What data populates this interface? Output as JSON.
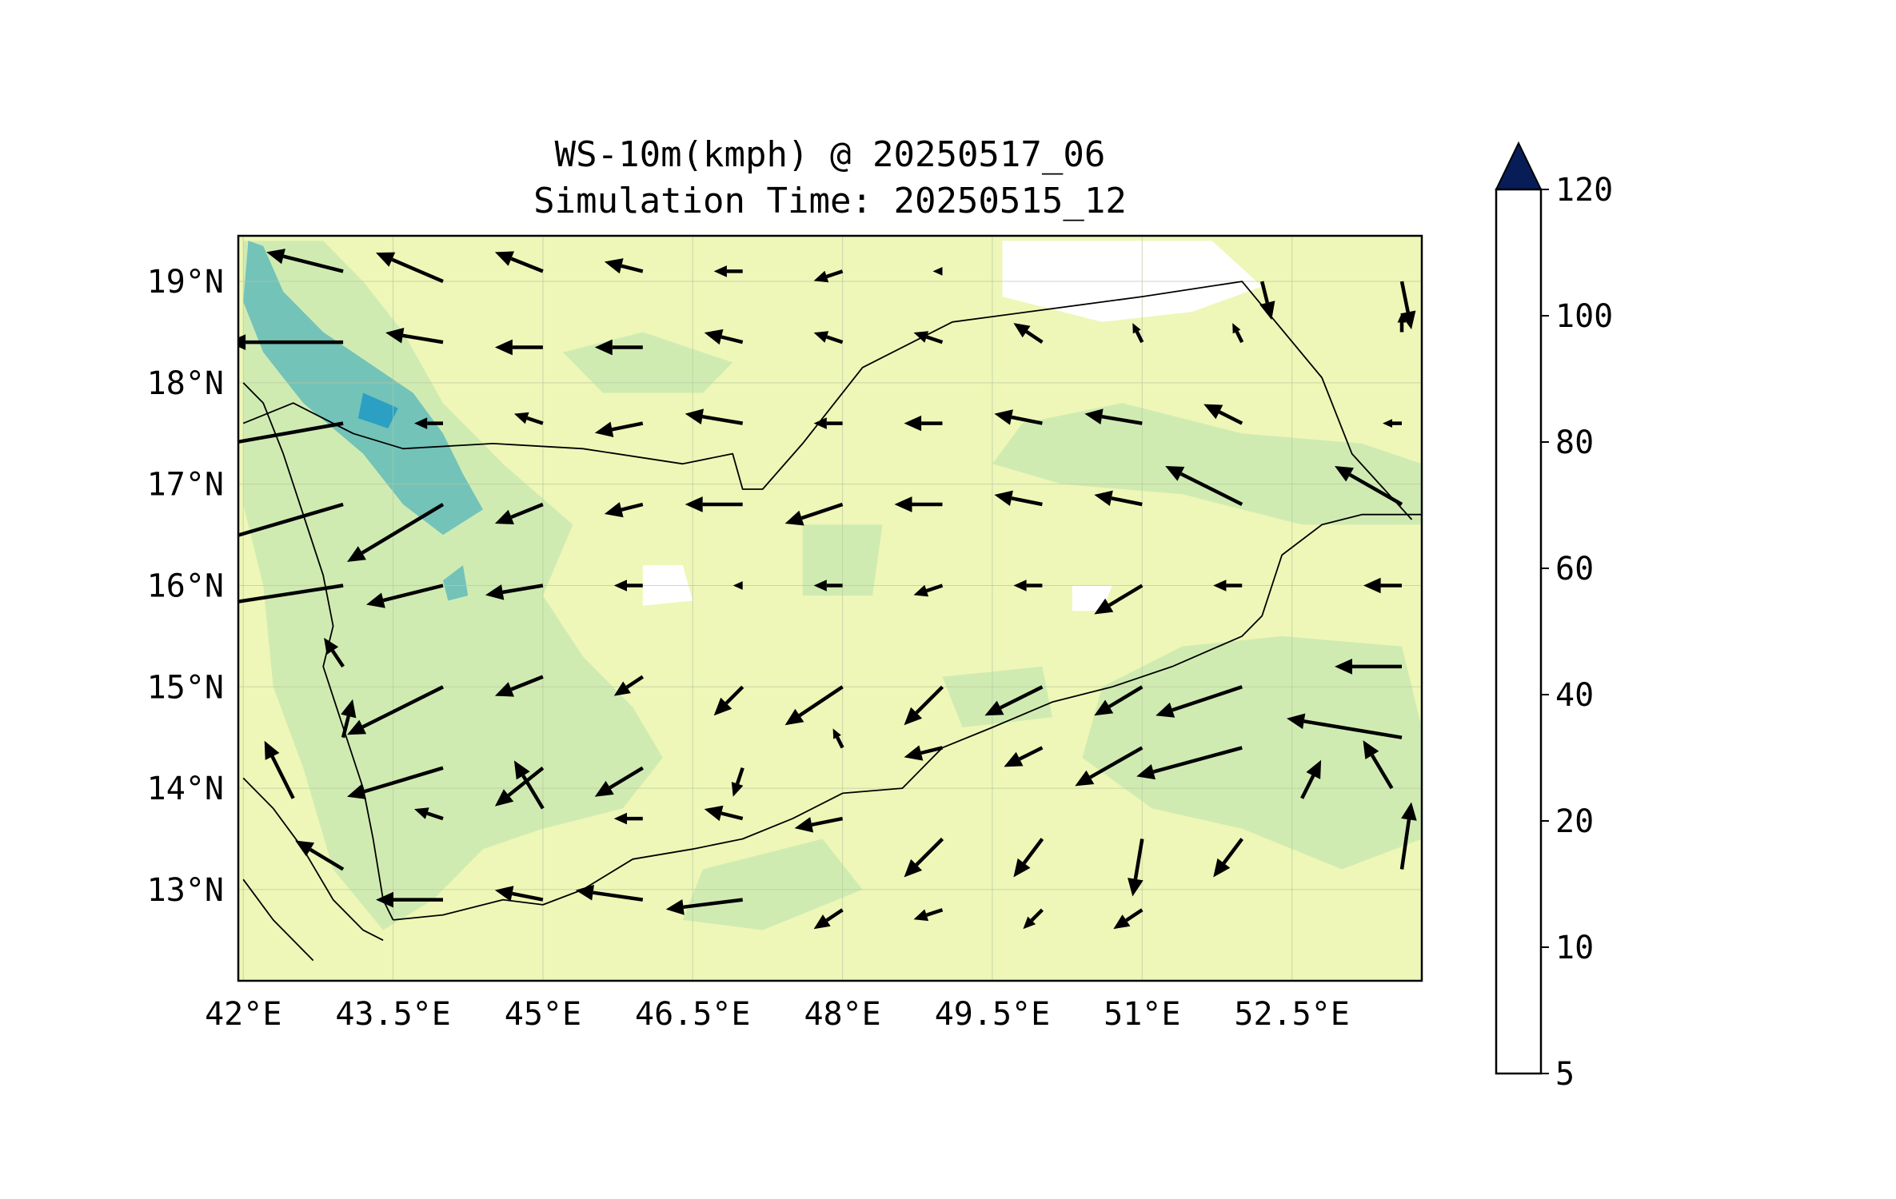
{
  "title": {
    "line1": "WS-10m(kmph) @ 20250517_06",
    "line2": "Simulation Time: 20250515_12"
  },
  "map": {
    "lon_range": [
      41.95,
      53.8
    ],
    "lat_range": [
      12.1,
      19.45
    ],
    "x_ticks": [
      {
        "value": 42.0,
        "label": "42°E"
      },
      {
        "value": 43.5,
        "label": "43.5°E"
      },
      {
        "value": 45.0,
        "label": "45°E"
      },
      {
        "value": 46.5,
        "label": "46.5°E"
      },
      {
        "value": 48.0,
        "label": "48°E"
      },
      {
        "value": 49.5,
        "label": "49.5°E"
      },
      {
        "value": 51.0,
        "label": "51°E"
      },
      {
        "value": 52.5,
        "label": "52.5°E"
      }
    ],
    "y_ticks": [
      {
        "value": 19.0,
        "label": "19°N"
      },
      {
        "value": 18.0,
        "label": "18°N"
      },
      {
        "value": 17.0,
        "label": "17°N"
      },
      {
        "value": 16.0,
        "label": "16°N"
      },
      {
        "value": 15.0,
        "label": "15°N"
      },
      {
        "value": 14.0,
        "label": "14°N"
      },
      {
        "value": 13.0,
        "label": "13°N"
      }
    ],
    "grid": true,
    "background_fill": "#eef7b7"
  },
  "contour_patches": [
    {
      "level": 20,
      "color": "#d0ebb2",
      "points": [
        [
          42.0,
          19.4
        ],
        [
          42.8,
          19.4
        ],
        [
          43.2,
          19.0
        ],
        [
          43.6,
          18.5
        ],
        [
          44.0,
          17.8
        ],
        [
          44.6,
          17.2
        ],
        [
          45.3,
          16.6
        ],
        [
          45.0,
          15.9
        ],
        [
          45.4,
          15.3
        ],
        [
          45.9,
          14.8
        ],
        [
          46.2,
          14.3
        ],
        [
          45.8,
          13.8
        ],
        [
          45.0,
          13.6
        ],
        [
          44.4,
          13.4
        ],
        [
          43.9,
          12.9
        ],
        [
          43.4,
          12.6
        ],
        [
          42.9,
          13.2
        ],
        [
          42.6,
          14.2
        ],
        [
          42.3,
          15.0
        ],
        [
          42.2,
          16.0
        ],
        [
          42.0,
          16.8
        ]
      ]
    },
    {
      "level": 20,
      "color": "#d0ebb2",
      "points": [
        [
          50.6,
          15.0
        ],
        [
          51.4,
          15.4
        ],
        [
          52.4,
          15.5
        ],
        [
          53.6,
          15.4
        ],
        [
          53.8,
          14.6
        ],
        [
          53.8,
          13.5
        ],
        [
          53.0,
          13.2
        ],
        [
          52.0,
          13.6
        ],
        [
          51.1,
          13.8
        ],
        [
          50.4,
          14.3
        ]
      ]
    },
    {
      "level": 20,
      "color": "#d0ebb2",
      "points": [
        [
          49.8,
          17.6
        ],
        [
          50.8,
          17.8
        ],
        [
          52.0,
          17.5
        ],
        [
          53.2,
          17.4
        ],
        [
          53.8,
          17.2
        ],
        [
          53.8,
          16.6
        ],
        [
          52.6,
          16.6
        ],
        [
          51.4,
          16.9
        ],
        [
          50.2,
          17.0
        ],
        [
          49.5,
          17.2
        ]
      ]
    },
    {
      "level": 20,
      "color": "#d0ebb2",
      "points": [
        [
          45.2,
          18.3
        ],
        [
          46.0,
          18.5
        ],
        [
          46.9,
          18.2
        ],
        [
          46.6,
          17.9
        ],
        [
          45.6,
          17.9
        ]
      ]
    },
    {
      "level": 20,
      "color": "#d0ebb2",
      "points": [
        [
          46.6,
          13.2
        ],
        [
          47.8,
          13.5
        ],
        [
          48.2,
          13.0
        ],
        [
          47.2,
          12.6
        ],
        [
          46.4,
          12.7
        ]
      ]
    },
    {
      "level": 20,
      "color": "#d0ebb2",
      "points": [
        [
          47.6,
          16.6
        ],
        [
          48.4,
          16.6
        ],
        [
          48.3,
          15.9
        ],
        [
          47.6,
          15.9
        ]
      ]
    },
    {
      "level": 20,
      "color": "#d0ebb2",
      "points": [
        [
          49.0,
          15.1
        ],
        [
          50.0,
          15.2
        ],
        [
          50.1,
          14.7
        ],
        [
          49.2,
          14.6
        ]
      ]
    },
    {
      "level": 40,
      "color": "#73c3b9",
      "points": [
        [
          42.05,
          19.4
        ],
        [
          42.2,
          19.35
        ],
        [
          42.4,
          18.9
        ],
        [
          42.8,
          18.5
        ],
        [
          43.1,
          18.3
        ],
        [
          43.7,
          17.9
        ],
        [
          44.0,
          17.5
        ],
        [
          44.2,
          17.1
        ],
        [
          44.4,
          16.75
        ],
        [
          44.0,
          16.5
        ],
        [
          43.6,
          16.8
        ],
        [
          43.2,
          17.3
        ],
        [
          42.6,
          17.8
        ],
        [
          42.2,
          18.3
        ],
        [
          42.0,
          18.8
        ]
      ]
    },
    {
      "level": 40,
      "color": "#73c3b9",
      "points": [
        [
          44.0,
          16.05
        ],
        [
          44.2,
          16.2
        ],
        [
          44.25,
          15.9
        ],
        [
          44.05,
          15.85
        ]
      ]
    },
    {
      "level": 60,
      "color": "#2ba0c3",
      "points": [
        [
          43.2,
          17.9
        ],
        [
          43.55,
          17.75
        ],
        [
          43.45,
          17.55
        ],
        [
          43.15,
          17.65
        ]
      ]
    }
  ],
  "calm_patches": [
    {
      "color": "#ffffff",
      "points": [
        [
          49.6,
          19.4
        ],
        [
          51.7,
          19.4
        ],
        [
          52.2,
          18.95
        ],
        [
          51.5,
          18.7
        ],
        [
          50.6,
          18.6
        ],
        [
          49.6,
          18.85
        ]
      ]
    },
    {
      "color": "#ffffff",
      "points": [
        [
          46.0,
          16.2
        ],
        [
          46.4,
          16.2
        ],
        [
          46.5,
          15.85
        ],
        [
          46.0,
          15.8
        ]
      ]
    },
    {
      "color": "#ffffff",
      "points": [
        [
          50.3,
          16.0
        ],
        [
          50.7,
          16.0
        ],
        [
          50.6,
          15.75
        ],
        [
          50.3,
          15.75
        ]
      ]
    }
  ],
  "coastlines": [
    {
      "name": "saudi-yemen-border",
      "points": [
        [
          42.0,
          17.6
        ],
        [
          42.5,
          17.8
        ],
        [
          43.1,
          17.5
        ],
        [
          43.6,
          17.35
        ],
        [
          44.5,
          17.4
        ],
        [
          45.4,
          17.35
        ],
        [
          46.4,
          17.2
        ],
        [
          46.9,
          17.3
        ],
        [
          47.0,
          16.95
        ],
        [
          47.2,
          16.95
        ],
        [
          47.6,
          17.4
        ],
        [
          48.2,
          18.15
        ],
        [
          49.1,
          18.6
        ],
        [
          51.0,
          18.85
        ],
        [
          52.0,
          19.0
        ],
        [
          52.8,
          18.05
        ],
        [
          53.1,
          17.3
        ],
        [
          53.7,
          16.65
        ]
      ]
    },
    {
      "name": "red-sea-coast",
      "points": [
        [
          42.0,
          18.0
        ],
        [
          42.2,
          17.8
        ],
        [
          42.4,
          17.3
        ],
        [
          42.6,
          16.7
        ],
        [
          42.8,
          16.1
        ],
        [
          42.9,
          15.6
        ],
        [
          42.8,
          15.2
        ],
        [
          43.0,
          14.6
        ],
        [
          43.2,
          14.0
        ],
        [
          43.3,
          13.5
        ],
        [
          43.4,
          12.9
        ],
        [
          43.5,
          12.7
        ]
      ]
    },
    {
      "name": "gulf-of-aden-coast",
      "points": [
        [
          43.5,
          12.7
        ],
        [
          44.0,
          12.75
        ],
        [
          44.6,
          12.9
        ],
        [
          45.0,
          12.85
        ],
        [
          45.4,
          13.0
        ],
        [
          45.9,
          13.3
        ],
        [
          46.5,
          13.4
        ],
        [
          47.0,
          13.5
        ],
        [
          47.5,
          13.7
        ],
        [
          48.0,
          13.95
        ],
        [
          48.6,
          14.0
        ],
        [
          49.0,
          14.4
        ],
        [
          49.5,
          14.6
        ],
        [
          50.1,
          14.85
        ],
        [
          50.7,
          15.0
        ],
        [
          51.3,
          15.2
        ],
        [
          52.0,
          15.5
        ],
        [
          52.2,
          15.7
        ],
        [
          52.4,
          16.3
        ],
        [
          52.8,
          16.6
        ],
        [
          53.2,
          16.7
        ],
        [
          53.8,
          16.7
        ]
      ]
    },
    {
      "name": "eritrea-coast",
      "points": [
        [
          42.0,
          14.1
        ],
        [
          42.3,
          13.8
        ],
        [
          42.6,
          13.4
        ],
        [
          42.9,
          12.9
        ],
        [
          43.2,
          12.6
        ],
        [
          43.4,
          12.5
        ]
      ]
    },
    {
      "name": "eritrea-border",
      "points": [
        [
          42.0,
          13.1
        ],
        [
          42.3,
          12.7
        ],
        [
          42.5,
          12.5
        ],
        [
          42.7,
          12.3
        ]
      ]
    }
  ],
  "wind_arrows": [
    {
      "lon": 43.0,
      "lat": 19.1,
      "u": -0.8,
      "v": 0.2
    },
    {
      "lon": 44.0,
      "lat": 19.0,
      "u": -0.7,
      "v": 0.3
    },
    {
      "lon": 45.0,
      "lat": 19.1,
      "u": -0.5,
      "v": 0.2
    },
    {
      "lon": 46.0,
      "lat": 19.1,
      "u": -0.4,
      "v": 0.1
    },
    {
      "lon": 47.0,
      "lat": 19.1,
      "u": -0.3,
      "v": 0.0
    },
    {
      "lon": 48.0,
      "lat": 19.1,
      "u": -0.3,
      "v": -0.1
    },
    {
      "lon": 49.0,
      "lat": 19.1,
      "u": -0.1,
      "v": 0.0
    },
    {
      "lon": 52.2,
      "lat": 19.0,
      "u": 0.1,
      "v": -0.4
    },
    {
      "lon": 53.6,
      "lat": 19.0,
      "u": 0.1,
      "v": -0.5
    },
    {
      "lon": 43.0,
      "lat": 18.4,
      "u": -1.2,
      "v": 0.0
    },
    {
      "lon": 44.0,
      "lat": 18.4,
      "u": -0.6,
      "v": 0.1
    },
    {
      "lon": 45.0,
      "lat": 18.35,
      "u": -0.5,
      "v": 0.0
    },
    {
      "lon": 46.0,
      "lat": 18.35,
      "u": -0.5,
      "v": 0.0
    },
    {
      "lon": 47.0,
      "lat": 18.4,
      "u": -0.4,
      "v": 0.1
    },
    {
      "lon": 48.0,
      "lat": 18.4,
      "u": -0.3,
      "v": 0.1
    },
    {
      "lon": 49.0,
      "lat": 18.4,
      "u": -0.3,
      "v": 0.1
    },
    {
      "lon": 50.0,
      "lat": 18.4,
      "u": -0.3,
      "v": 0.2
    },
    {
      "lon": 51.0,
      "lat": 18.4,
      "u": -0.1,
      "v": 0.2
    },
    {
      "lon": 52.0,
      "lat": 18.4,
      "u": -0.1,
      "v": 0.2
    },
    {
      "lon": 53.6,
      "lat": 18.5,
      "u": 0.0,
      "v": 0.2
    },
    {
      "lon": 43.0,
      "lat": 17.6,
      "u": -1.7,
      "v": -0.3
    },
    {
      "lon": 44.0,
      "lat": 17.6,
      "u": -0.3,
      "v": 0.0
    },
    {
      "lon": 45.0,
      "lat": 17.6,
      "u": -0.3,
      "v": 0.1
    },
    {
      "lon": 46.0,
      "lat": 17.6,
      "u": -0.5,
      "v": -0.1
    },
    {
      "lon": 47.0,
      "lat": 17.6,
      "u": -0.6,
      "v": 0.1
    },
    {
      "lon": 48.0,
      "lat": 17.6,
      "u": -0.3,
      "v": 0.0
    },
    {
      "lon": 49.0,
      "lat": 17.6,
      "u": -0.4,
      "v": 0.0
    },
    {
      "lon": 50.0,
      "lat": 17.6,
      "u": -0.5,
      "v": 0.1
    },
    {
      "lon": 51.0,
      "lat": 17.6,
      "u": -0.6,
      "v": 0.1
    },
    {
      "lon": 52.0,
      "lat": 17.6,
      "u": -0.4,
      "v": 0.2
    },
    {
      "lon": 53.6,
      "lat": 17.6,
      "u": -0.2,
      "v": 0.0
    },
    {
      "lon": 43.0,
      "lat": 16.8,
      "u": -1.7,
      "v": -0.5
    },
    {
      "lon": 44.0,
      "lat": 16.8,
      "u": -1.0,
      "v": -0.6
    },
    {
      "lon": 45.0,
      "lat": 16.8,
      "u": -0.5,
      "v": -0.2
    },
    {
      "lon": 46.0,
      "lat": 16.8,
      "u": -0.4,
      "v": -0.1
    },
    {
      "lon": 47.0,
      "lat": 16.8,
      "u": -0.6,
      "v": 0.0
    },
    {
      "lon": 48.0,
      "lat": 16.8,
      "u": -0.6,
      "v": -0.2
    },
    {
      "lon": 49.0,
      "lat": 16.8,
      "u": -0.5,
      "v": 0.0
    },
    {
      "lon": 50.0,
      "lat": 16.8,
      "u": -0.5,
      "v": 0.1
    },
    {
      "lon": 51.0,
      "lat": 16.8,
      "u": -0.5,
      "v": 0.1
    },
    {
      "lon": 52.0,
      "lat": 16.8,
      "u": -0.8,
      "v": 0.4
    },
    {
      "lon": 53.6,
      "lat": 16.8,
      "u": -0.7,
      "v": 0.4
    },
    {
      "lon": 43.0,
      "lat": 16.0,
      "u": -1.3,
      "v": -0.2
    },
    {
      "lon": 44.0,
      "lat": 16.0,
      "u": -0.8,
      "v": -0.2
    },
    {
      "lon": 45.0,
      "lat": 16.0,
      "u": -0.6,
      "v": -0.1
    },
    {
      "lon": 46.0,
      "lat": 16.0,
      "u": -0.3,
      "v": 0.0
    },
    {
      "lon": 47.0,
      "lat": 16.0,
      "u": -0.1,
      "v": 0.0
    },
    {
      "lon": 48.0,
      "lat": 16.0,
      "u": -0.3,
      "v": 0.0
    },
    {
      "lon": 49.0,
      "lat": 16.0,
      "u": -0.3,
      "v": -0.1
    },
    {
      "lon": 50.0,
      "lat": 16.0,
      "u": -0.3,
      "v": 0.0
    },
    {
      "lon": 51.0,
      "lat": 16.0,
      "u": -0.5,
      "v": -0.3
    },
    {
      "lon": 52.0,
      "lat": 16.0,
      "u": -0.3,
      "v": 0.0
    },
    {
      "lon": 53.6,
      "lat": 16.0,
      "u": -0.4,
      "v": 0.0
    },
    {
      "lon": 43.0,
      "lat": 15.2,
      "u": -0.2,
      "v": 0.3
    },
    {
      "lon": 44.0,
      "lat": 15.0,
      "u": -1.0,
      "v": -0.5
    },
    {
      "lon": 45.0,
      "lat": 15.1,
      "u": -0.5,
      "v": -0.2
    },
    {
      "lon": 46.0,
      "lat": 15.1,
      "u": -0.3,
      "v": -0.2
    },
    {
      "lon": 47.0,
      "lat": 15.0,
      "u": -0.3,
      "v": -0.3
    },
    {
      "lon": 48.0,
      "lat": 15.0,
      "u": -0.6,
      "v": -0.4
    },
    {
      "lon": 49.0,
      "lat": 15.0,
      "u": -0.4,
      "v": -0.4
    },
    {
      "lon": 50.0,
      "lat": 15.0,
      "u": -0.6,
      "v": -0.3
    },
    {
      "lon": 51.0,
      "lat": 15.0,
      "u": -0.5,
      "v": -0.3
    },
    {
      "lon": 52.0,
      "lat": 15.0,
      "u": -0.9,
      "v": -0.3
    },
    {
      "lon": 53.6,
      "lat": 15.2,
      "u": -0.7,
      "v": 0.0
    },
    {
      "lon": 43.0,
      "lat": 14.5,
      "u": 0.1,
      "v": 0.4
    },
    {
      "lon": 44.0,
      "lat": 14.2,
      "u": -1.0,
      "v": -0.3
    },
    {
      "lon": 45.0,
      "lat": 14.2,
      "u": -0.5,
      "v": -0.4
    },
    {
      "lon": 46.0,
      "lat": 14.2,
      "u": -0.5,
      "v": -0.3
    },
    {
      "lon": 47.0,
      "lat": 14.2,
      "u": -0.1,
      "v": -0.3
    },
    {
      "lon": 48.0,
      "lat": 14.4,
      "u": -0.1,
      "v": 0.2
    },
    {
      "lon": 49.0,
      "lat": 14.4,
      "u": -0.4,
      "v": -0.1
    },
    {
      "lon": 50.0,
      "lat": 14.4,
      "u": -0.4,
      "v": -0.2
    },
    {
      "lon": 51.0,
      "lat": 14.4,
      "u": -0.7,
      "v": -0.4
    },
    {
      "lon": 52.0,
      "lat": 14.4,
      "u": -1.1,
      "v": -0.3
    },
    {
      "lon": 53.6,
      "lat": 14.5,
      "u": -1.2,
      "v": 0.2
    },
    {
      "lon": 42.5,
      "lat": 13.9,
      "u": -0.3,
      "v": 0.6
    },
    {
      "lon": 44.0,
      "lat": 13.7,
      "u": -0.3,
      "v": 0.1
    },
    {
      "lon": 45.0,
      "lat": 13.8,
      "u": -0.3,
      "v": 0.5
    },
    {
      "lon": 46.0,
      "lat": 13.7,
      "u": -0.3,
      "v": 0.0
    },
    {
      "lon": 47.0,
      "lat": 13.7,
      "u": -0.4,
      "v": 0.1
    },
    {
      "lon": 48.0,
      "lat": 13.7,
      "u": -0.5,
      "v": -0.1
    },
    {
      "lon": 49.0,
      "lat": 13.5,
      "u": -0.4,
      "v": -0.4
    },
    {
      "lon": 50.0,
      "lat": 13.5,
      "u": -0.3,
      "v": -0.4
    },
    {
      "lon": 51.0,
      "lat": 13.5,
      "u": -0.1,
      "v": -0.6
    },
    {
      "lon": 52.0,
      "lat": 13.5,
      "u": -0.3,
      "v": -0.4
    },
    {
      "lon": 52.6,
      "lat": 13.9,
      "u": 0.2,
      "v": 0.4
    },
    {
      "lon": 53.5,
      "lat": 14.0,
      "u": -0.3,
      "v": 0.5
    },
    {
      "lon": 43.0,
      "lat": 13.2,
      "u": -0.5,
      "v": 0.3
    },
    {
      "lon": 44.0,
      "lat": 12.9,
      "u": -0.7,
      "v": 0.0
    },
    {
      "lon": 45.0,
      "lat": 12.9,
      "u": -0.5,
      "v": 0.1
    },
    {
      "lon": 46.0,
      "lat": 12.9,
      "u": -0.7,
      "v": 0.1
    },
    {
      "lon": 47.0,
      "lat": 12.9,
      "u": -0.8,
      "v": -0.1
    },
    {
      "lon": 48.0,
      "lat": 12.8,
      "u": -0.3,
      "v": -0.2
    },
    {
      "lon": 49.0,
      "lat": 12.8,
      "u": -0.3,
      "v": -0.1
    },
    {
      "lon": 50.0,
      "lat": 12.8,
      "u": -0.2,
      "v": -0.2
    },
    {
      "lon": 51.0,
      "lat": 12.8,
      "u": -0.3,
      "v": -0.2
    },
    {
      "lon": 53.6,
      "lat": 13.2,
      "u": 0.1,
      "v": 0.7
    }
  ],
  "colorbar": {
    "extend": "max",
    "extend_color": "#081d58",
    "levels": [
      5,
      10,
      20,
      40,
      60,
      80,
      100,
      120
    ],
    "tick_labels": [
      "5",
      "10",
      "20",
      "40",
      "60",
      "80",
      "100",
      "120"
    ],
    "colors": [
      "#ffffd9",
      "#edf8b1",
      "#c7e9b4",
      "#7fcdbb",
      "#41b6c4",
      "#1d91c0",
      "#225ea8",
      "#253494"
    ]
  }
}
